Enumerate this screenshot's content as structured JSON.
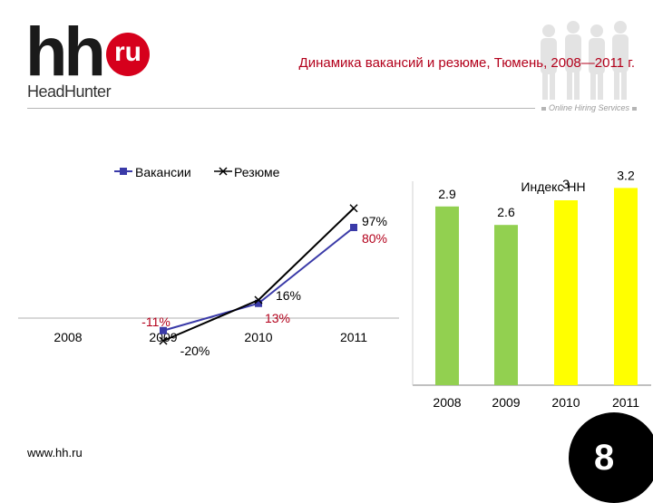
{
  "header": {
    "logo_main": "hh",
    "logo_badge": "ru",
    "logo_sub": "HeadHunter",
    "title": "Динамика вакансий и резюме, Тюмень, 2008—2011 г.",
    "tagline": "Online Hiring Services"
  },
  "footer": {
    "url": "www.hh.ru",
    "page_number": "8"
  },
  "colors": {
    "title_red": "#b3001b",
    "logo_red": "#d6001c",
    "vacancies_blue": "#3a3aa8",
    "resumes_black": "#000000",
    "bar_green": "#92d050",
    "bar_yellow": "#ffff00"
  },
  "chart_data": [
    {
      "type": "line",
      "title": "",
      "legend_position": "top",
      "categories": [
        "2008",
        "2009",
        "2010",
        "2011"
      ],
      "series": [
        {
          "name": "Вакансии",
          "values": [
            null,
            -11,
            13,
            80
          ],
          "labels": [
            "",
            "-11%",
            "13%",
            "80%"
          ]
        },
        {
          "name": "Резюме",
          "values": [
            null,
            -20,
            16,
            97
          ],
          "labels": [
            "",
            "-20%",
            "16%",
            "97%"
          ]
        }
      ]
    },
    {
      "type": "bar",
      "title": "Индекс HH",
      "categories": [
        "2008",
        "2009",
        "2010",
        "2011"
      ],
      "values": [
        2.9,
        2.6,
        3,
        3.2
      ],
      "value_labels": [
        "2.9",
        "2.6",
        "3",
        "3.2"
      ],
      "bar_colors": [
        "#92d050",
        "#92d050",
        "#ffff00",
        "#ffff00"
      ],
      "ylim": [
        0,
        3.6
      ]
    }
  ]
}
